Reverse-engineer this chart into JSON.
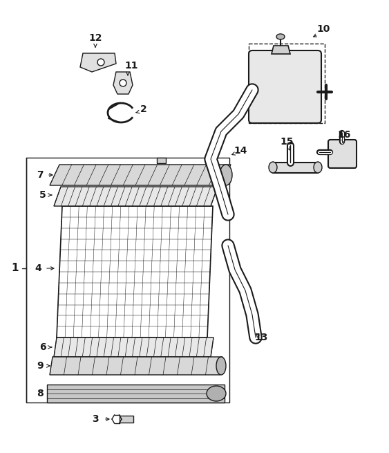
{
  "bg_color": "#ffffff",
  "line_color": "#1a1a1a",
  "fig_width": 5.63,
  "fig_height": 6.55,
  "dpi": 100
}
